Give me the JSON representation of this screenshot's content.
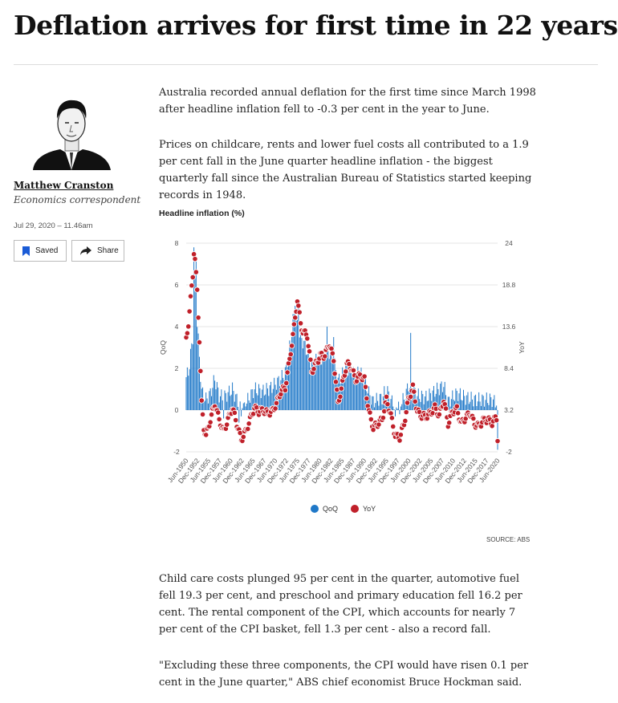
{
  "article": {
    "headline": "Deflation arrives for first time in 22 years",
    "author": "Matthew Cranston",
    "role": "Economics correspondent",
    "date": "Jul 29, 2020 – 11.46am",
    "saved_label": "Saved",
    "share_label": "Share",
    "paragraphs": [
      "Australia recorded annual deflation for the first time since March 1998 after headline inflation fell to -0.3 per cent in the year to June.",
      "Prices on childcare, rents and lower fuel costs all contributed to a 1.9 per cent fall in the June quarter headline inflation - the biggest quarterly fall since the Australian Bureau of Statistics started keeping records in 1948.",
      "Child care costs plunged 95 per cent in the quarter, automotive fuel fell 19.3 per cent, and preschool and primary education fell 16.2 per cent. The rental component of the CPI, which accounts for nearly 7 per cent of the CPI basket, fell 1.3 per cent - also a record fall.",
      "\"Excluding these three components, the CPI would have risen 0.1 per cent in the June quarter,\" ABS chief economist Bruce Hockman said."
    ],
    "source": "SOURCE: ABS"
  },
  "icons": {
    "saved": "bookmark-icon",
    "share": "share-arrow-icon",
    "avatar": "author-portrait"
  },
  "colors": {
    "qoq": "#1f78c8",
    "yoy": "#c0202a",
    "rule": "#dddddd"
  },
  "chart_data": {
    "type": "bar",
    "title": "Headline inflation (%)",
    "ylabel_left": "QoQ",
    "ylabel_right": "YoY",
    "ylim_left": [
      -2,
      8
    ],
    "ylim_right": [
      -2,
      24
    ],
    "yticks_left": [
      "8",
      "6",
      "4",
      "2",
      "0",
      "-2"
    ],
    "yticks_right": [
      "24",
      "18.8",
      "13.6",
      "8.4",
      "3.2",
      "-2"
    ],
    "xtick_labels": [
      "Jun-1950",
      "Dec-1952",
      "Jun-1955",
      "Dec-1957",
      "Jun-1960",
      "Dec-1962",
      "Jun-1965",
      "Dec-1967",
      "Jun-1970",
      "Dec-1972",
      "Jun-1975",
      "Dec-1977",
      "Jun-1980",
      "Dec-1982",
      "Jun-1985",
      "Dec-1987",
      "Jun-1990",
      "Dec-1992",
      "Jun-1995",
      "Dec-1997",
      "Jun-2000",
      "Dec-2002",
      "Jun-2005",
      "Dec-2007",
      "Jun-2010",
      "Dec-2012",
      "Jun-2015",
      "Dec-2017",
      "Jun-2020"
    ],
    "legend": [
      "QoQ",
      "YoY"
    ],
    "legend_position": "bottom",
    "grid": true,
    "x_range": [
      "Jun-1949",
      "Jun-2020"
    ],
    "series": [
      {
        "name": "QoQ",
        "type": "bar",
        "axis": "left",
        "keyframes": [
          [
            "1949",
            1.4
          ],
          [
            "1950",
            1.8
          ],
          [
            "1951",
            3.5
          ],
          [
            "1951.5",
            6.0
          ],
          [
            "1952",
            4.2
          ],
          [
            "1952.5",
            2.5
          ],
          [
            "1953",
            0.9
          ],
          [
            "1954",
            0.5
          ],
          [
            "1955",
            0.8
          ],
          [
            "1956",
            1.5
          ],
          [
            "1957",
            0.7
          ],
          [
            "1958",
            0.6
          ],
          [
            "1960",
            1.0
          ],
          [
            "1961",
            0.5
          ],
          [
            "1962",
            0.2
          ],
          [
            "1963",
            0.3
          ],
          [
            "1965",
            1.0
          ],
          [
            "1967",
            0.9
          ],
          [
            "1969",
            1.1
          ],
          [
            "1971",
            1.5
          ],
          [
            "1972",
            1.8
          ],
          [
            "1973",
            3.0
          ],
          [
            "1974",
            4.5
          ],
          [
            "1974.5",
            4.2
          ],
          [
            "1975",
            3.8
          ],
          [
            "1976",
            3.3
          ],
          [
            "1977",
            2.8
          ],
          [
            "1978",
            2.2
          ],
          [
            "1980",
            2.5
          ],
          [
            "1981",
            2.6
          ],
          [
            "1982",
            2.8
          ],
          [
            "1983",
            2.4
          ],
          [
            "1984",
            1.4
          ],
          [
            "1985",
            1.7
          ],
          [
            "1986",
            2.0
          ],
          [
            "1987",
            1.9
          ],
          [
            "1988",
            1.7
          ],
          [
            "1989",
            1.8
          ],
          [
            "1990",
            1.5
          ],
          [
            "1991",
            0.8
          ],
          [
            "1992",
            0.4
          ],
          [
            "1993",
            0.5
          ],
          [
            "1994",
            0.6
          ],
          [
            "1995",
            1.0
          ],
          [
            "1996",
            0.5
          ],
          [
            "1997",
            0.0
          ],
          [
            "1998",
            0.4
          ],
          [
            "1999",
            0.5
          ],
          [
            "2000",
            1.2
          ],
          [
            "2001",
            1.0
          ],
          [
            "2002",
            0.7
          ],
          [
            "2004",
            0.6
          ],
          [
            "2006",
            0.9
          ],
          [
            "2008",
            1.2
          ],
          [
            "2009",
            0.4
          ],
          [
            "2011",
            0.8
          ],
          [
            "2013",
            0.6
          ],
          [
            "2015",
            0.5
          ],
          [
            "2017",
            0.5
          ],
          [
            "2019",
            0.5
          ],
          [
            "2020",
            0.3
          ]
        ],
        "spikes": [
          [
            "1951.25",
            7.8
          ],
          [
            "1951.75",
            7.2
          ],
          [
            "1973.75",
            4.6
          ],
          [
            "1974.25",
            5.0
          ],
          [
            "1975.0",
            4.9
          ],
          [
            "1981.5",
            4.0
          ],
          [
            "1983.0",
            3.5
          ],
          [
            "2000.5",
            3.7
          ],
          [
            "1958.0",
            -0.4
          ],
          [
            "1961.5",
            -0.6
          ],
          [
            "1962.0",
            -0.3
          ],
          [
            "1997.0",
            -0.3
          ],
          [
            "1998.0",
            -0.2
          ],
          [
            "2020.25",
            -1.9
          ]
        ]
      },
      {
        "name": "YoY",
        "type": "scatter",
        "axis": "right",
        "keyframes": [
          [
            "1949",
            11.0
          ],
          [
            "1949.5",
            12.0
          ],
          [
            "1950",
            14.0
          ],
          [
            "1950.5",
            17.0
          ],
          [
            "1951",
            20.0
          ],
          [
            "1951.25",
            23.0
          ],
          [
            "1951.5",
            22.0
          ],
          [
            "1952",
            18.0
          ],
          [
            "1952.5",
            12.0
          ],
          [
            "1953",
            4.0
          ],
          [
            "1953.5",
            1.0
          ],
          [
            "1954",
            0.0
          ],
          [
            "1955",
            2.0
          ],
          [
            "1956",
            4.0
          ],
          [
            "1957",
            2.0
          ],
          [
            "1958",
            0.5
          ],
          [
            "1959",
            2.0
          ],
          [
            "1960",
            3.5
          ],
          [
            "1961",
            1.5
          ],
          [
            "1962",
            -0.5
          ],
          [
            "1963",
            0.5
          ],
          [
            "1964",
            2.0
          ],
          [
            "1965",
            3.5
          ],
          [
            "1966",
            3.0
          ],
          [
            "1967",
            3.2
          ],
          [
            "1968",
            2.8
          ],
          [
            "1969",
            3.0
          ],
          [
            "1970",
            4.0
          ],
          [
            "1971",
            5.5
          ],
          [
            "1972",
            6.0
          ],
          [
            "1973",
            9.5
          ],
          [
            "1974",
            13.5
          ],
          [
            "1974.75",
            17.0
          ],
          [
            "1975.5",
            14.0
          ],
          [
            "1976",
            13.0
          ],
          [
            "1977",
            12.5
          ],
          [
            "1978",
            8.0
          ],
          [
            "1979",
            9.0
          ],
          [
            "1980",
            10.0
          ],
          [
            "1981",
            10.0
          ],
          [
            "1982",
            11.5
          ],
          [
            "1983",
            9.5
          ],
          [
            "1984",
            4.0
          ],
          [
            "1985",
            6.5
          ],
          [
            "1986",
            9.0
          ],
          [
            "1987",
            8.5
          ],
          [
            "1988",
            7.0
          ],
          [
            "1989",
            7.5
          ],
          [
            "1990",
            7.0
          ],
          [
            "1991",
            3.0
          ],
          [
            "1992",
            1.0
          ],
          [
            "1993",
            1.5
          ],
          [
            "1994",
            2.0
          ],
          [
            "1995",
            4.5
          ],
          [
            "1996",
            2.5
          ],
          [
            "1997",
            0.0
          ],
          [
            "1998",
            -0.2
          ],
          [
            "1999",
            1.5
          ],
          [
            "2000",
            4.5
          ],
          [
            "2001",
            6.0
          ],
          [
            "2002",
            3.0
          ],
          [
            "2003",
            2.5
          ],
          [
            "2004",
            2.4
          ],
          [
            "2005",
            2.8
          ],
          [
            "2006",
            3.5
          ],
          [
            "2007",
            2.5
          ],
          [
            "2008",
            4.5
          ],
          [
            "2009",
            1.5
          ],
          [
            "2010",
            3.0
          ],
          [
            "2011",
            3.3
          ],
          [
            "2012",
            1.5
          ],
          [
            "2013",
            2.3
          ],
          [
            "2014",
            2.8
          ],
          [
            "2015",
            1.5
          ],
          [
            "2016",
            1.2
          ],
          [
            "2017",
            1.9
          ],
          [
            "2018",
            2.0
          ],
          [
            "2019",
            1.6
          ],
          [
            "2019.75",
            2.2
          ],
          [
            "2020",
            2.2
          ],
          [
            "2020.25",
            -0.3
          ]
        ]
      }
    ]
  }
}
